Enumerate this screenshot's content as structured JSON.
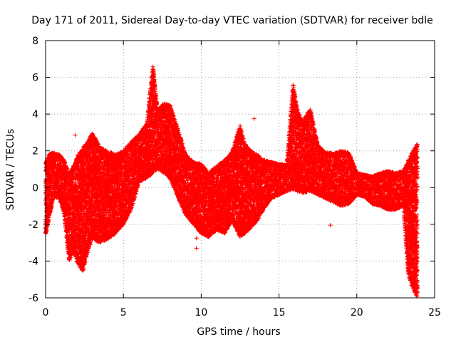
{
  "chart_data": {
    "type": "scatter",
    "title": "Day 171 of 2011, Sidereal Day-to-day VTEC variation (SDTVAR) for receiver bdle",
    "xlabel": "GPS time / hours",
    "ylabel": "SDTVAR / TECUs",
    "xlim": [
      0,
      25
    ],
    "ylim": [
      -6,
      8
    ],
    "xticks": [
      0,
      5,
      10,
      15,
      20,
      25
    ],
    "yticks": [
      -6,
      -4,
      -2,
      0,
      2,
      4,
      6,
      8
    ],
    "grid": true,
    "marker": "+",
    "color": "#ff0000",
    "envelope": {
      "x": [
        0.0,
        0.2,
        0.5,
        0.9,
        1.2,
        1.5,
        1.8,
        2.1,
        2.4,
        2.7,
        3.0,
        3.5,
        4.0,
        4.5,
        5.0,
        5.5,
        6.0,
        6.5,
        6.9,
        7.2,
        7.6,
        8.0,
        8.5,
        9.0,
        9.5,
        10.0,
        10.5,
        11.0,
        11.5,
        12.0,
        12.5,
        12.8,
        13.2,
        13.6,
        14.0,
        14.5,
        15.0,
        15.5,
        15.9,
        16.2,
        16.5,
        17.0,
        17.5,
        18.0,
        18.5,
        19.0,
        19.5,
        20.0,
        20.5,
        21.0,
        21.5,
        22.0,
        22.5,
        23.0,
        23.3,
        23.6,
        23.9
      ],
      "upper": [
        1.4,
        1.8,
        1.9,
        1.8,
        1.5,
        0.8,
        1.2,
        1.8,
        2.2,
        2.5,
        3.0,
        2.2,
        2.0,
        1.8,
        2.0,
        2.5,
        2.9,
        3.5,
        6.7,
        4.2,
        4.6,
        4.5,
        3.2,
        1.8,
        1.4,
        1.3,
        0.8,
        1.2,
        1.5,
        2.0,
        3.4,
        2.4,
        2.0,
        1.8,
        1.5,
        1.4,
        1.3,
        1.2,
        5.7,
        4.2,
        3.6,
        4.3,
        2.3,
        1.9,
        1.9,
        2.0,
        1.9,
        0.8,
        0.7,
        0.6,
        0.8,
        0.9,
        0.8,
        0.9,
        1.5,
        2.0,
        2.4
      ],
      "lower": [
        -2.6,
        -1.8,
        -0.5,
        -0.6,
        -1.5,
        -4.0,
        -3.5,
        -4.2,
        -4.6,
        -3.5,
        -2.8,
        -3.0,
        -2.8,
        -2.5,
        -2.0,
        -1.2,
        0.3,
        0.5,
        0.8,
        1.0,
        0.8,
        0.5,
        -0.5,
        -1.5,
        -2.0,
        -2.5,
        -2.7,
        -2.3,
        -2.5,
        -1.8,
        -2.7,
        -2.5,
        -2.2,
        -1.8,
        -1.2,
        -0.6,
        -0.4,
        -0.2,
        -0.1,
        -0.2,
        -0.3,
        -0.2,
        -0.4,
        -0.6,
        -0.8,
        -1.0,
        -0.9,
        -0.4,
        -0.5,
        -0.9,
        -1.0,
        -1.2,
        -1.2,
        -1.0,
        -4.8,
        -5.5,
        -6.0
      ]
    },
    "outliers": [
      {
        "x": 1.9,
        "y": 2.85
      },
      {
        "x": 9.7,
        "y": -2.75
      },
      {
        "x": 9.7,
        "y": -3.3
      },
      {
        "x": 13.4,
        "y": 3.75
      },
      {
        "x": 18.3,
        "y": -2.05
      }
    ]
  }
}
